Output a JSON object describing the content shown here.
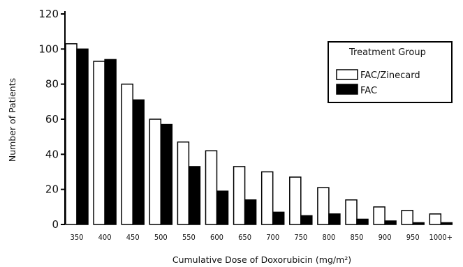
{
  "chart_data": {
    "type": "bar",
    "xlabel": "Cumulative Dose of Doxorubicin (mg/m²)",
    "ylabel": "Number of Patients",
    "ylim": [
      0,
      120
    ],
    "yticks": [
      0,
      20,
      40,
      60,
      80,
      100,
      120
    ],
    "categories": [
      "350",
      "400",
      "450",
      "500",
      "550",
      "600",
      "650",
      "700",
      "750",
      "800",
      "850",
      "900",
      "950",
      "1000+"
    ],
    "series": [
      {
        "name": "FAC/Zinecard",
        "fill": "#ffffff",
        "values": [
          103,
          93,
          80,
          60,
          47,
          42,
          33,
          30,
          27,
          21,
          14,
          10,
          8,
          6
        ]
      },
      {
        "name": "FAC",
        "fill": "#000000",
        "values": [
          100,
          94,
          71,
          57,
          33,
          19,
          14,
          7,
          5,
          6,
          3,
          2,
          1,
          1
        ]
      }
    ],
    "legend": {
      "title": "Treatment Group",
      "position": "top-right"
    },
    "grid": false
  }
}
